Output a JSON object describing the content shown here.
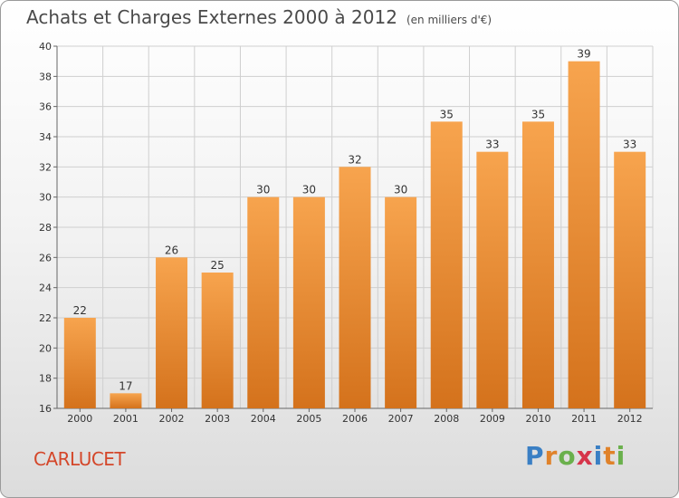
{
  "header": {
    "title": "Achats et Charges Externes 2000 à 2012",
    "subtitle": "(en milliers d'€)"
  },
  "footer": {
    "commune": "CARLUCET",
    "logo_letters": [
      "P",
      "r",
      "o",
      "x",
      "i",
      "t",
      "i"
    ],
    "logo_colors": [
      "#3a7fc4",
      "#e0822a",
      "#6ab04c",
      "#d6344a",
      "#3a7fc4",
      "#e0822a",
      "#6ab04c"
    ]
  },
  "chart_data": {
    "type": "bar",
    "categories": [
      "2000",
      "2001",
      "2002",
      "2003",
      "2004",
      "2005",
      "2006",
      "2007",
      "2008",
      "2009",
      "2010",
      "2011",
      "2012"
    ],
    "values": [
      22,
      17,
      26,
      25,
      30,
      30,
      32,
      30,
      35,
      33,
      35,
      39,
      33
    ],
    "ylim": [
      16,
      40
    ],
    "yticks": [
      16,
      18,
      20,
      22,
      24,
      26,
      28,
      30,
      32,
      34,
      36,
      38,
      40
    ],
    "grid": true,
    "colors": {
      "bar_light": "#f7a44e",
      "bar_dark": "#d4721c",
      "grid": "#cfcfcf"
    }
  }
}
